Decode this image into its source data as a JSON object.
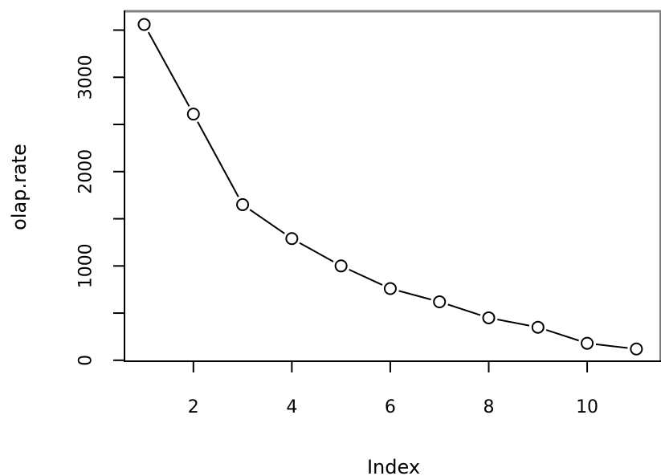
{
  "chart_data": {
    "type": "line",
    "title": "",
    "xlabel": "Index",
    "ylabel": "olap.rate",
    "x": [
      1,
      2,
      3,
      4,
      5,
      6,
      7,
      8,
      9,
      10,
      11
    ],
    "series": [
      {
        "values": [
          3560,
          2610,
          1650,
          1290,
          1000,
          760,
          620,
          450,
          350,
          180,
          120
        ]
      }
    ],
    "xlim": [
      0.6,
      11.5
    ],
    "ylim": [
      -10,
      3700
    ],
    "x_ticks": [
      2,
      4,
      6,
      8,
      10
    ],
    "y_ticks": [
      0,
      500,
      1000,
      1500,
      2000,
      2500,
      3000,
      3500
    ],
    "y_tick_labels": [
      {
        "value": 0,
        "label": "0"
      },
      {
        "value": 1000,
        "label": "1000"
      },
      {
        "value": 2000,
        "label": "2000"
      },
      {
        "value": 3000,
        "label": "3000"
      }
    ],
    "marker": "open-circle",
    "line_style": "solid",
    "grid": false,
    "colors": {
      "line": "#000000",
      "axis": "#000000",
      "frame": "#808080",
      "background": "#ffffff"
    }
  }
}
